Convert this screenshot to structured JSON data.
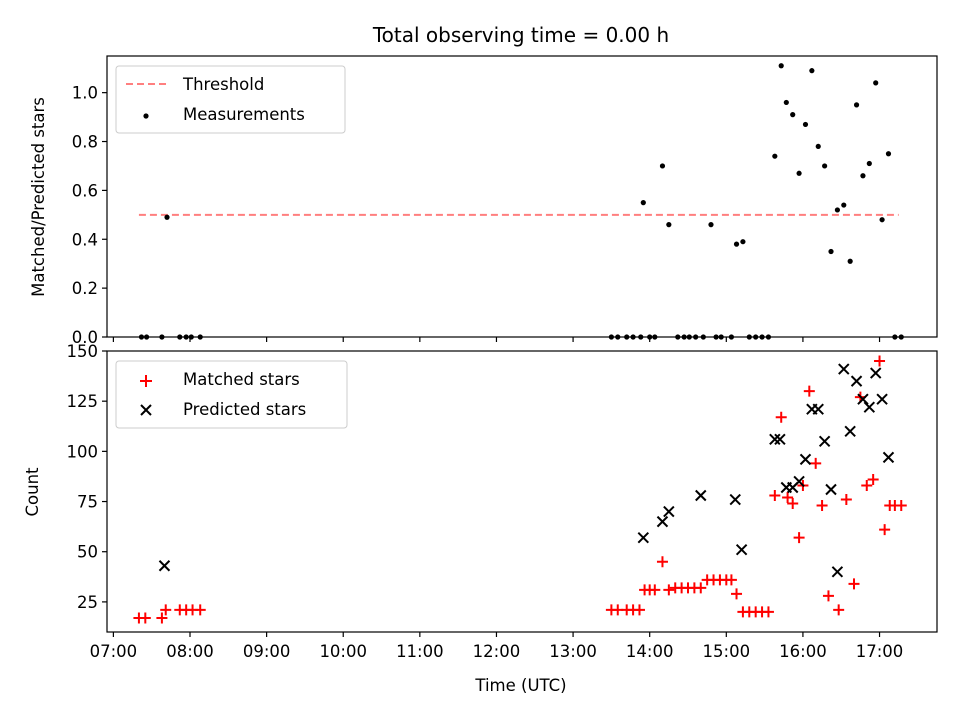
{
  "figure": {
    "title": "Total observing time = 0.00 h"
  },
  "chart_data": [
    {
      "type": "scatter",
      "panel": "top",
      "ylabel": "Matched/Predicted stars",
      "ylim": [
        0,
        1.15
      ],
      "yticks": [
        0.0,
        0.2,
        0.4,
        0.6,
        0.8,
        1.0
      ],
      "ytick_labels": [
        "0.0",
        "0.2",
        "0.4",
        "0.6",
        "0.8",
        "1.0"
      ],
      "legend": {
        "placement": "top-left",
        "entries": [
          "Threshold",
          "Measurements"
        ]
      },
      "series": [
        {
          "name": "Threshold",
          "kind": "dashed-line",
          "color": "#ff7f7f",
          "x": [
            "07:20",
            "17:15"
          ],
          "y": [
            0.5,
            0.5
          ]
        },
        {
          "name": "Measurements",
          "kind": "points",
          "color": "#000000",
          "x": [
            "07:22",
            "07:26",
            "07:38",
            "07:42",
            "07:52",
            "07:57",
            "08:01",
            "08:08",
            "13:30",
            "13:35",
            "13:42",
            "13:47",
            "13:53",
            "13:55",
            "14:00",
            "14:04",
            "14:10",
            "14:15",
            "14:22",
            "14:27",
            "14:31",
            "14:36",
            "14:42",
            "14:48",
            "14:52",
            "14:56",
            "15:04",
            "15:08",
            "15:13",
            "15:18",
            "15:23",
            "15:28",
            "15:33",
            "15:38",
            "15:43",
            "15:47",
            "15:52",
            "15:57",
            "16:02",
            "16:07",
            "16:12",
            "16:17",
            "16:22",
            "16:27",
            "16:32",
            "16:37",
            "16:42",
            "16:47",
            "16:52",
            "16:57",
            "17:02",
            "17:07",
            "17:12",
            "17:17"
          ],
          "y": [
            0.0,
            0.0,
            0.0,
            0.49,
            0.0,
            0.0,
            0.0,
            0.0,
            0.0,
            0.0,
            0.0,
            0.0,
            0.0,
            0.55,
            0.0,
            0.0,
            0.7,
            0.46,
            0.0,
            0.0,
            0.0,
            0.0,
            0.0,
            0.46,
            0.0,
            0.0,
            0.0,
            0.38,
            0.39,
            0.0,
            0.0,
            0.0,
            0.0,
            0.74,
            1.11,
            0.96,
            0.91,
            0.67,
            0.87,
            1.09,
            0.78,
            0.7,
            0.35,
            0.52,
            0.54,
            0.31,
            0.95,
            0.66,
            0.71,
            1.04,
            0.48,
            0.75,
            0.0,
            0.0
          ]
        }
      ]
    },
    {
      "type": "scatter",
      "panel": "bottom",
      "xlabel": "Time (UTC)",
      "ylabel": "Count",
      "xlim": [
        "06:55",
        "17:45"
      ],
      "xticks": [
        "07:00",
        "08:00",
        "09:00",
        "10:00",
        "11:00",
        "12:00",
        "13:00",
        "14:00",
        "15:00",
        "16:00",
        "17:00"
      ],
      "ylim": [
        10,
        150
      ],
      "yticks": [
        25,
        50,
        75,
        100,
        125,
        150
      ],
      "ytick_labels": [
        "25",
        "50",
        "75",
        "100",
        "125",
        "150"
      ],
      "legend": {
        "placement": "top-left",
        "entries": [
          "Matched stars",
          "Predicted stars"
        ]
      },
      "series": [
        {
          "name": "Matched stars",
          "marker": "plus",
          "color": "#ff0000",
          "x": [
            "07:20",
            "07:25",
            "07:38",
            "07:41",
            "07:52",
            "07:57",
            "08:02",
            "08:08",
            "13:30",
            "13:35",
            "13:42",
            "13:47",
            "13:52",
            "13:56",
            "14:00",
            "14:04",
            "14:10",
            "14:15",
            "14:20",
            "14:25",
            "14:30",
            "14:35",
            "14:40",
            "14:45",
            "14:50",
            "14:55",
            "15:00",
            "15:04",
            "15:08",
            "15:13",
            "15:18",
            "15:23",
            "15:28",
            "15:33",
            "15:38",
            "15:43",
            "15:48",
            "15:52",
            "15:57",
            "16:00",
            "16:05",
            "16:10",
            "16:15",
            "16:20",
            "16:28",
            "16:34",
            "16:40",
            "16:45",
            "16:50",
            "16:55",
            "17:00",
            "17:04",
            "17:08",
            "17:12",
            "17:17"
          ],
          "y": [
            17,
            17,
            17,
            21,
            21,
            21,
            21,
            21,
            21,
            21,
            21,
            21,
            21,
            31,
            31,
            31,
            45,
            31,
            32,
            32,
            32,
            32,
            32,
            36,
            36,
            36,
            36,
            36,
            29,
            20,
            20,
            20,
            20,
            20,
            78,
            117,
            77,
            74,
            57,
            83,
            130,
            94,
            73,
            28,
            21,
            76,
            34,
            127,
            83,
            86,
            145,
            61,
            73,
            73,
            73
          ]
        },
        {
          "name": "Predicted stars",
          "marker": "x",
          "color": "#000000",
          "x": [
            "07:40",
            "13:55",
            "14:10",
            "14:15",
            "14:40",
            "15:07",
            "15:12",
            "15:38",
            "15:42",
            "15:47",
            "15:52",
            "15:57",
            "16:02",
            "16:07",
            "16:12",
            "16:17",
            "16:22",
            "16:27",
            "16:32",
            "16:37",
            "16:42",
            "16:47",
            "16:52",
            "16:57",
            "17:02",
            "17:07"
          ],
          "y": [
            43,
            57,
            65,
            70,
            78,
            76,
            51,
            106,
            106,
            82,
            82,
            85,
            96,
            121,
            121,
            105,
            81,
            40,
            141,
            110,
            135,
            126,
            122,
            139,
            126,
            97
          ]
        }
      ]
    }
  ]
}
